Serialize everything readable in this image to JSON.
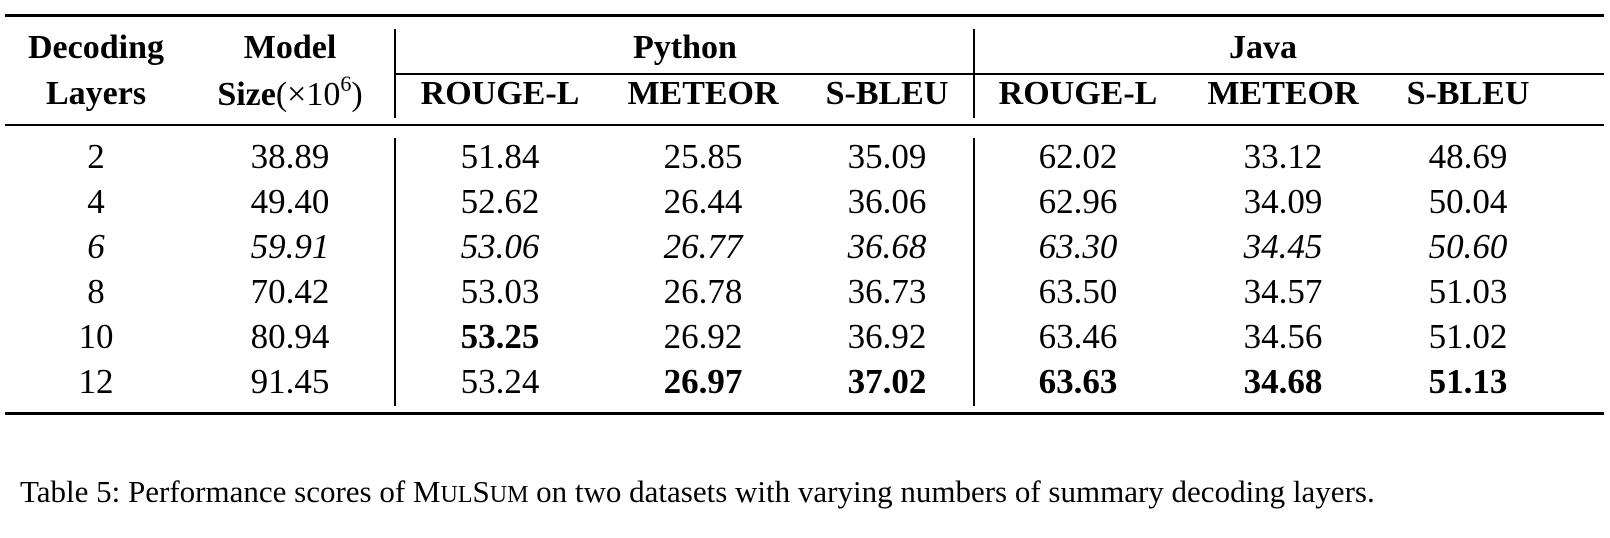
{
  "header": {
    "col1_line1": "Decoding",
    "col1_line2": "Layers",
    "col2_line1": "Model",
    "col2_line2_bold": "Size",
    "col2_line2_rest": "(×10",
    "col2_line2_sup": "6",
    "col2_line2_close": ")",
    "group_python": "Python",
    "group_java": "Java",
    "metrics": [
      "ROUGE-L",
      "METEOR",
      "S-BLEU",
      "ROUGE-L",
      "METEOR",
      "S-BLEU"
    ]
  },
  "rows": [
    {
      "layers": "2",
      "size": "38.89",
      "py_rouge": "51.84",
      "py_meteor": "25.85",
      "py_sbleu": "35.09",
      "java_rouge": "62.02",
      "java_meteor": "33.12",
      "java_sbleu": "48.69"
    },
    {
      "layers": "4",
      "size": "49.40",
      "py_rouge": "52.62",
      "py_meteor": "26.44",
      "py_sbleu": "36.06",
      "java_rouge": "62.96",
      "java_meteor": "34.09",
      "java_sbleu": "50.04"
    },
    {
      "layers": "6",
      "size": "59.91",
      "py_rouge": "53.06",
      "py_meteor": "26.77",
      "py_sbleu": "36.68",
      "java_rouge": "63.30",
      "java_meteor": "34.45",
      "java_sbleu": "50.60"
    },
    {
      "layers": "8",
      "size": "70.42",
      "py_rouge": "53.03",
      "py_meteor": "26.78",
      "py_sbleu": "36.73",
      "java_rouge": "63.50",
      "java_meteor": "34.57",
      "java_sbleu": "51.03"
    },
    {
      "layers": "10",
      "size": "80.94",
      "py_rouge": "53.25",
      "py_meteor": "26.92",
      "py_sbleu": "36.92",
      "java_rouge": "63.46",
      "java_meteor": "34.56",
      "java_sbleu": "51.02"
    },
    {
      "layers": "12",
      "size": "91.45",
      "py_rouge": "53.24",
      "py_meteor": "26.97",
      "py_sbleu": "37.02",
      "java_rouge": "63.63",
      "java_meteor": "34.68",
      "java_sbleu": "51.13"
    }
  ],
  "caption": {
    "prefix": "Table 5: Performance scores of M",
    "sc1": "UL",
    "mid": "S",
    "sc2": "UM",
    "suffix": " on two datasets with varying numbers of summary decoding layers."
  }
}
